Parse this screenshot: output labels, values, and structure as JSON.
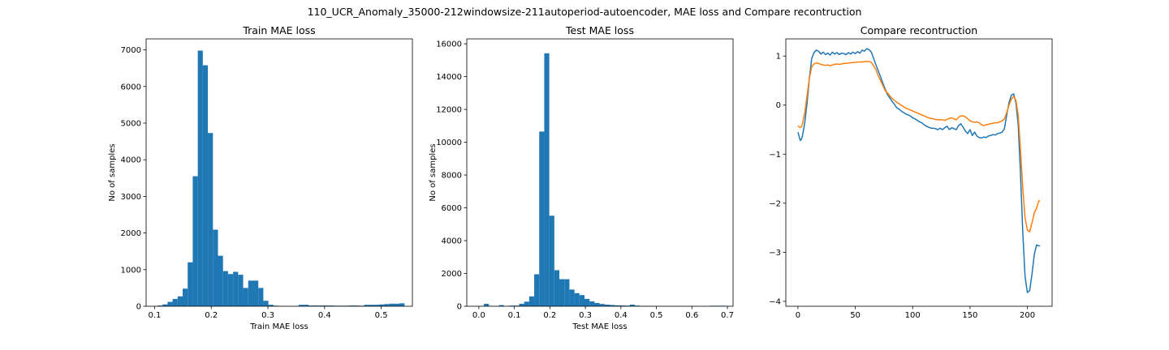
{
  "figure": {
    "suptitle": "110_UCR_Anomaly_35000-212windowsize-211autoperiod-autoencoder, MAE loss and Compare recontruction"
  },
  "colors": {
    "hist": "#1f77b4",
    "line1": "#1f77b4",
    "line2": "#ff7f0e"
  },
  "chart_data": [
    {
      "type": "bar",
      "title": "Train MAE loss",
      "xlabel": "Train MAE loss",
      "ylabel": "No of samples",
      "xlim": [
        0.085,
        0.555
      ],
      "ylim": [
        0,
        7300
      ],
      "xticks": [
        0.1,
        0.2,
        0.3,
        0.4,
        0.5
      ],
      "xtick_labels": [
        "0.1",
        "0.2",
        "0.3",
        "0.4",
        "0.5"
      ],
      "yticks": [
        0,
        1000,
        2000,
        3000,
        4000,
        5000,
        6000,
        7000
      ],
      "ytick_labels": [
        "0",
        "1000",
        "2000",
        "3000",
        "4000",
        "5000",
        "6000",
        "7000"
      ],
      "bins": {
        "start": 0.105,
        "width": 0.0089,
        "counts": [
          20,
          50,
          120,
          200,
          270,
          480,
          1200,
          3550,
          6980,
          6580,
          4730,
          2090,
          1380,
          960,
          880,
          940,
          860,
          500,
          700,
          700,
          500,
          150,
          40,
          15,
          10,
          5,
          5,
          5,
          40,
          40,
          20,
          20,
          20,
          20,
          20,
          15,
          15,
          15,
          20,
          20,
          15,
          40,
          40,
          40,
          50,
          60,
          70,
          70,
          80
        ]
      }
    },
    {
      "type": "bar",
      "title": "Test MAE loss",
      "xlabel": "Test MAE loss",
      "ylabel": "No of samples",
      "xlim": [
        -0.034,
        0.716
      ],
      "ylim": [
        0,
        16300
      ],
      "xticks": [
        0.0,
        0.1,
        0.2,
        0.3,
        0.4,
        0.5,
        0.6,
        0.7
      ],
      "xtick_labels": [
        "0.0",
        "0.1",
        "0.2",
        "0.3",
        "0.4",
        "0.5",
        "0.6",
        "0.7"
      ],
      "yticks": [
        0,
        2000,
        4000,
        6000,
        8000,
        10000,
        12000,
        14000,
        16000
      ],
      "ytick_labels": [
        "0",
        "2000",
        "4000",
        "6000",
        "8000",
        "10000",
        "12000",
        "14000",
        "16000"
      ],
      "bins": {
        "start": 0.0,
        "width": 0.01417,
        "counts": [
          10,
          150,
          20,
          0,
          70,
          0,
          40,
          40,
          150,
          280,
          600,
          1950,
          10650,
          15420,
          5520,
          2200,
          1650,
          1650,
          1020,
          800,
          680,
          450,
          300,
          200,
          140,
          100,
          80,
          60,
          50,
          40,
          100,
          40,
          20,
          20,
          20,
          10,
          10,
          10,
          10,
          10,
          5,
          5,
          5,
          5,
          5,
          5,
          30,
          30,
          30,
          5
        ]
      }
    },
    {
      "type": "line",
      "title": "Compare recontruction",
      "xlabel": "",
      "ylabel": "",
      "xlim": [
        -10.55,
        221.55
      ],
      "ylim": [
        -4.1,
        1.35
      ],
      "xticks": [
        0,
        50,
        100,
        150,
        200
      ],
      "xtick_labels": [
        "0",
        "50",
        "100",
        "150",
        "200"
      ],
      "yticks": [
        1,
        0,
        -1,
        -2,
        -3,
        -4
      ],
      "ytick_labels": [
        "1",
        "0",
        "−1",
        "−2",
        "−3",
        "−4"
      ],
      "series": [
        {
          "x": [
            0,
            2,
            3,
            4,
            6,
            8,
            10,
            12,
            14,
            16,
            18,
            20,
            22,
            24,
            26,
            28,
            30,
            32,
            34,
            36,
            38,
            40,
            42,
            44,
            46,
            48,
            50,
            52,
            54,
            56,
            58,
            60,
            62,
            64,
            66,
            68,
            70,
            72,
            74,
            76,
            78,
            80,
            82,
            84,
            86,
            88,
            90,
            92,
            94,
            96,
            98,
            100,
            102,
            104,
            106,
            108,
            110,
            112,
            114,
            116,
            118,
            120,
            122,
            124,
            126,
            128,
            130,
            132,
            134,
            136,
            138,
            140,
            142,
            144,
            146,
            148,
            150,
            152,
            154,
            156,
            158,
            160,
            162,
            164,
            166,
            168,
            170,
            172,
            174,
            176,
            178,
            180,
            182,
            184,
            186,
            188,
            190,
            192,
            194,
            196,
            198,
            200,
            202,
            204,
            206,
            208,
            210,
            211
          ],
          "y": [
            -0.55,
            -0.72,
            -0.7,
            -0.62,
            -0.35,
            0.05,
            0.55,
            0.95,
            1.07,
            1.12,
            1.1,
            1.04,
            1.08,
            1.03,
            1.06,
            1.02,
            1.08,
            1.04,
            1.07,
            1.03,
            1.06,
            1.05,
            1.03,
            1.07,
            1.04,
            1.08,
            1.05,
            1.09,
            1.06,
            1.12,
            1.1,
            1.15,
            1.13,
            1.08,
            0.95,
            0.82,
            0.7,
            0.58,
            0.45,
            0.33,
            0.22,
            0.15,
            0.08,
            0.02,
            -0.05,
            -0.08,
            -0.12,
            -0.15,
            -0.18,
            -0.2,
            -0.22,
            -0.26,
            -0.28,
            -0.31,
            -0.34,
            -0.36,
            -0.4,
            -0.43,
            -0.45,
            -0.47,
            -0.47,
            -0.48,
            -0.5,
            -0.47,
            -0.5,
            -0.46,
            -0.43,
            -0.5,
            -0.46,
            -0.48,
            -0.5,
            -0.42,
            -0.38,
            -0.45,
            -0.53,
            -0.58,
            -0.5,
            -0.62,
            -0.55,
            -0.63,
            -0.66,
            -0.67,
            -0.65,
            -0.66,
            -0.63,
            -0.62,
            -0.6,
            -0.61,
            -0.58,
            -0.57,
            -0.55,
            -0.48,
            -0.2,
            0.05,
            0.2,
            0.23,
            0.05,
            -0.4,
            -1.4,
            -2.6,
            -3.5,
            -3.82,
            -3.78,
            -3.45,
            -3.05,
            -2.85,
            -2.87,
            -2.87
          ]
        },
        {
          "x": [
            0,
            2,
            3,
            4,
            6,
            8,
            10,
            12,
            14,
            16,
            18,
            20,
            22,
            24,
            26,
            28,
            30,
            32,
            34,
            36,
            38,
            40,
            42,
            44,
            46,
            48,
            50,
            52,
            54,
            56,
            58,
            60,
            62,
            64,
            66,
            68,
            70,
            72,
            74,
            76,
            78,
            80,
            82,
            84,
            86,
            88,
            90,
            92,
            94,
            96,
            98,
            100,
            102,
            104,
            106,
            108,
            110,
            112,
            114,
            116,
            118,
            120,
            122,
            124,
            126,
            128,
            130,
            132,
            134,
            136,
            138,
            140,
            142,
            144,
            146,
            148,
            150,
            152,
            154,
            156,
            158,
            160,
            162,
            164,
            166,
            168,
            170,
            172,
            174,
            176,
            178,
            180,
            182,
            184,
            186,
            188,
            190,
            192,
            194,
            196,
            198,
            200,
            202,
            204,
            206,
            208,
            210,
            211
          ],
          "y": [
            -0.42,
            -0.46,
            -0.44,
            -0.38,
            -0.15,
            0.2,
            0.55,
            0.78,
            0.84,
            0.86,
            0.85,
            0.83,
            0.82,
            0.81,
            0.82,
            0.8,
            0.82,
            0.83,
            0.84,
            0.83,
            0.84,
            0.85,
            0.85,
            0.86,
            0.86,
            0.87,
            0.87,
            0.88,
            0.88,
            0.88,
            0.89,
            0.89,
            0.89,
            0.87,
            0.8,
            0.72,
            0.6,
            0.5,
            0.4,
            0.3,
            0.25,
            0.19,
            0.14,
            0.1,
            0.06,
            0.03,
            0.0,
            -0.03,
            -0.06,
            -0.08,
            -0.1,
            -0.12,
            -0.14,
            -0.16,
            -0.18,
            -0.2,
            -0.22,
            -0.24,
            -0.26,
            -0.27,
            -0.28,
            -0.29,
            -0.3,
            -0.3,
            -0.3,
            -0.31,
            -0.29,
            -0.27,
            -0.26,
            -0.28,
            -0.3,
            -0.25,
            -0.22,
            -0.22,
            -0.24,
            -0.28,
            -0.32,
            -0.34,
            -0.35,
            -0.34,
            -0.36,
            -0.4,
            -0.42,
            -0.4,
            -0.39,
            -0.38,
            -0.37,
            -0.36,
            -0.36,
            -0.34,
            -0.32,
            -0.28,
            -0.15,
            0.0,
            0.12,
            0.18,
            0.1,
            -0.2,
            -0.9,
            -1.7,
            -2.3,
            -2.55,
            -2.58,
            -2.4,
            -2.2,
            -2.1,
            -1.95,
            -1.95
          ]
        }
      ]
    }
  ]
}
